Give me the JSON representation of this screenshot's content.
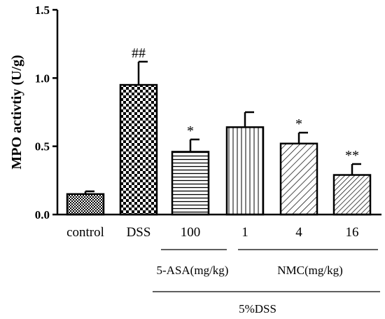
{
  "chart_data": {
    "type": "bar",
    "title": "",
    "ylabel": "MPO activtiy (U/g)",
    "xlabel": "",
    "ylim": [
      0,
      1.5
    ],
    "yticks": [
      "0.0",
      "0.5",
      "1.0",
      "1.5"
    ],
    "categories": [
      "control",
      "DSS",
      "100",
      "1",
      "4",
      "16"
    ],
    "values": [
      0.15,
      0.95,
      0.46,
      0.64,
      0.52,
      0.29
    ],
    "errors": [
      0.02,
      0.17,
      0.09,
      0.11,
      0.08,
      0.08
    ],
    "patterns": [
      "small-checker",
      "checker",
      "horizontal-lines",
      "vertical-lines",
      "diagonal-lines",
      "diagonal-lines-dense"
    ],
    "significance": [
      "",
      "##",
      "*",
      "",
      "*",
      "**"
    ],
    "groups": [
      {
        "label": "5-ASA(mg/kg)",
        "categories": [
          "100"
        ]
      },
      {
        "label": "NMC(mg/kg)",
        "categories": [
          "1",
          "4",
          "16"
        ]
      }
    ],
    "overall_group": "5%DSS",
    "grid": false,
    "legend": "none"
  }
}
